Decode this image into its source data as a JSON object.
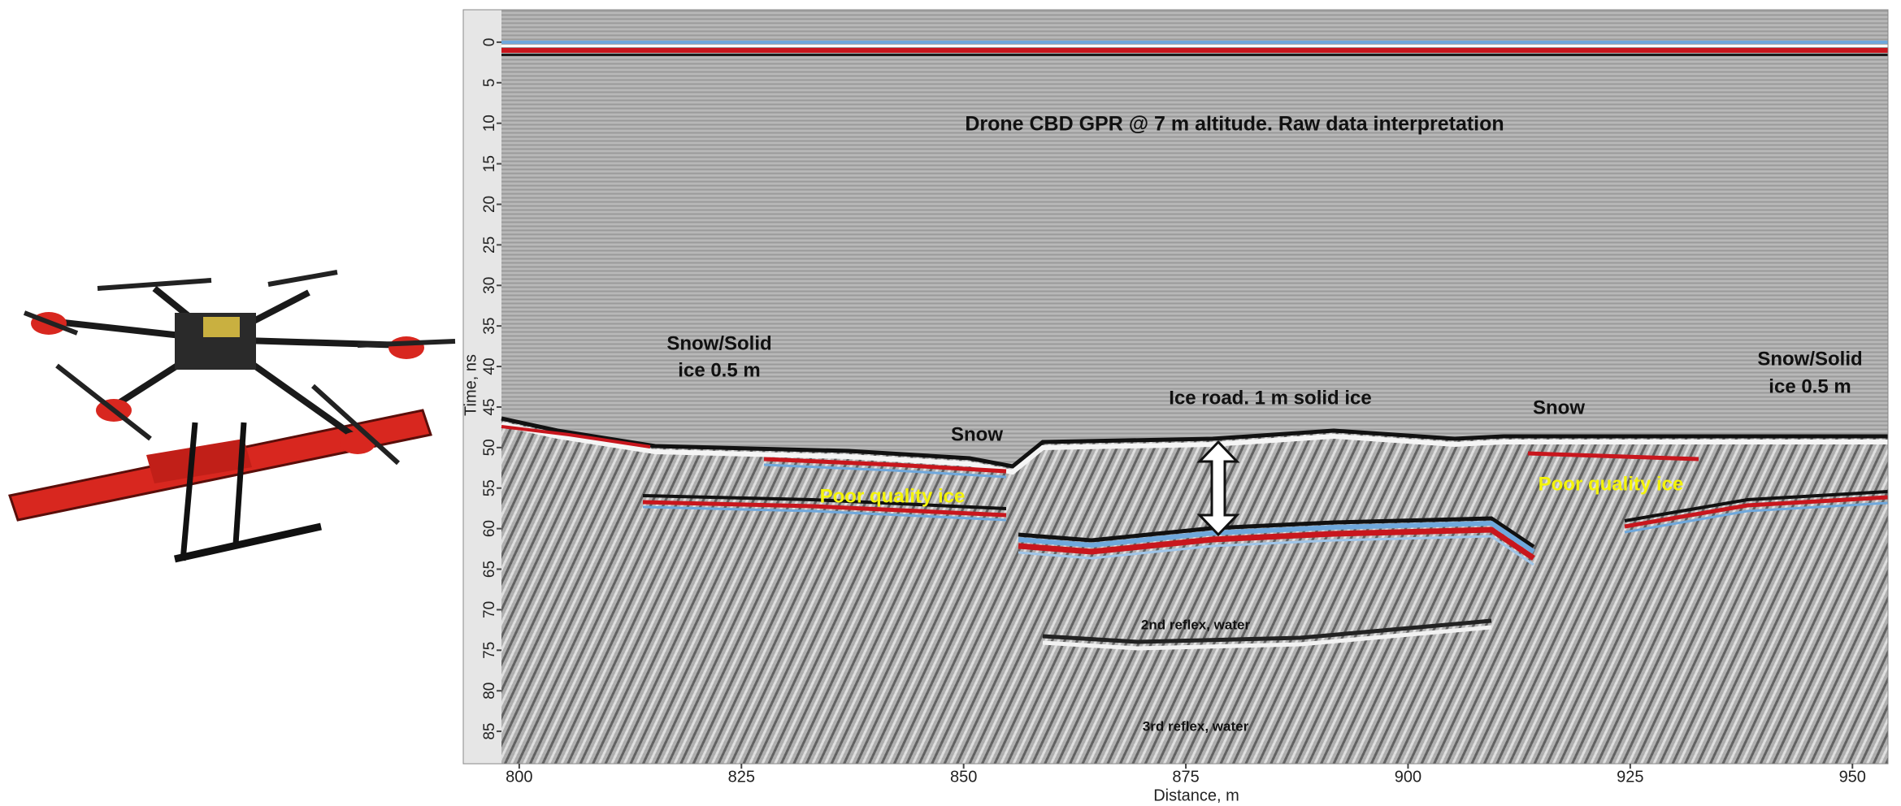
{
  "chart_data": {
    "type": "radargram",
    "title": "Drone CBD GPR @ 7 m altitude. Raw data interpretation",
    "x_label": "Distance, m",
    "y_label": "Time, ns",
    "xlim": [
      798,
      954
    ],
    "xticks": [
      800,
      825,
      850,
      875,
      900,
      925,
      950
    ],
    "ylim": [
      -4,
      89
    ],
    "yticks": [
      0,
      5,
      10,
      15,
      20,
      25,
      30,
      35,
      40,
      45,
      50,
      55,
      60,
      65,
      70,
      75,
      80,
      85
    ],
    "y_inverted": true,
    "annotations": [
      {
        "text": "Snow/Solid",
        "color": "#111111"
      },
      {
        "text": "ice 0.5 m",
        "color": "#111111"
      },
      {
        "text": "Ice road. 1 m solid ice",
        "color": "#111111"
      },
      {
        "text": "Snow",
        "color": "#111111"
      },
      {
        "text": "Snow",
        "color": "#111111"
      },
      {
        "text": "Poor quality ice",
        "color": "#f4f40a"
      },
      {
        "text": "Poor quality ice",
        "color": "#f4f40a"
      },
      {
        "text": "Snow/Solid",
        "color": "#111111"
      },
      {
        "text": "ice 0.5 m",
        "color": "#111111"
      },
      {
        "text": "2nd reflex, water",
        "color": "#111111"
      },
      {
        "text": "3rd reflex, water",
        "color": "#111111"
      }
    ]
  }
}
